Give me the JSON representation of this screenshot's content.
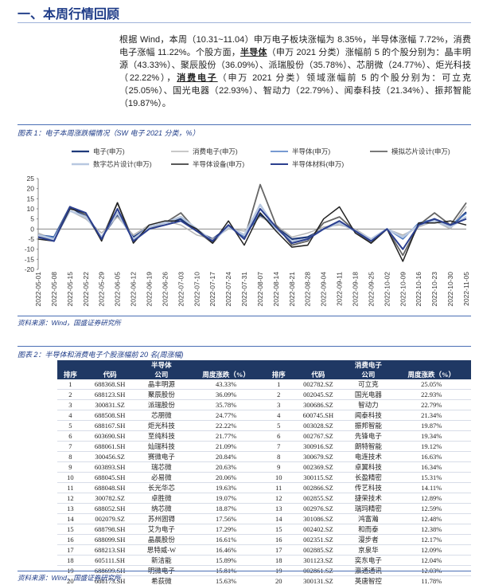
{
  "heading": "一、本周行情回顾",
  "paragraph": [
    "根据 Wind，本周（10.31~11.04）申万电子板块涨幅为 8.35%，半导体涨幅 7.72%，消费电子涨幅 11.22%。个股方面，",
    "半导体",
    "（申万 2021 分类）涨幅前 5 的个股分别为：晶丰明源（43.33%）、聚辰股份（36.09%）、派瑞股份（35.78%）、芯朋微（24.77%）、炬光科技（22.22%），",
    "消费电子",
    "（申万 2021 分类）领域涨幅前 5 的个股分别为：可立克（25.05%）、国光电器（22.93%）、智动力（22.79%）、闻泰科技（21.34%）、振邦智能（19.87%）。"
  ],
  "figure1_caption": "图表 1：电子本周涨跌幅情况（SW 电子 2021 分类，%）",
  "chart_data": {
    "type": "line",
    "categories": [
      "2022-05-01",
      "2022-05-08",
      "2022-05-15",
      "2022-05-22",
      "2022-05-29",
      "2022-06-05",
      "2022-06-12",
      "2022-06-19",
      "2022-06-26",
      "2022-07-03",
      "2022-07-10",
      "2022-07-17",
      "2022-07-24",
      "2022-07-31",
      "2022-08-07",
      "2022-08-14",
      "2022-08-21",
      "2022-08-28",
      "2022-09-04",
      "2022-09-11",
      "2022-09-18",
      "2022-09-25",
      "2022-10-02",
      "2022-10-09",
      "2022-10-16",
      "2022-10-23",
      "2022-10-30",
      "2022-11-05"
    ],
    "series": [
      {
        "name": "电子(申万)",
        "color": "#1f3a7a",
        "width": 2.2,
        "values": [
          -3,
          -4,
          11,
          6,
          -4,
          7,
          -4,
          1,
          3,
          5,
          -1,
          -5,
          1,
          -3,
          7,
          1,
          -5,
          -4,
          0,
          3,
          -1,
          -5,
          0,
          -4,
          2,
          5,
          1,
          8.35
        ]
      },
      {
        "name": "消费电子(申万)",
        "color": "#b5b5b5",
        "width": 1.5,
        "values": [
          -2,
          -5,
          9,
          5,
          -2,
          6,
          -3,
          2,
          4,
          2,
          -3,
          -5,
          0,
          -1,
          6,
          2,
          -4,
          -2,
          1,
          2,
          0,
          -5,
          0,
          -3,
          1,
          4,
          0,
          11.22
        ]
      },
      {
        "name": "半导体(申万)",
        "color": "#4a78c2",
        "width": 1.5,
        "values": [
          -3,
          -4,
          11,
          7,
          -4,
          8,
          -5,
          1,
          3,
          6,
          0,
          -6,
          2,
          -4,
          8,
          0,
          -6,
          -5,
          0,
          4,
          -1,
          -5,
          0,
          -5,
          3,
          5,
          2,
          7.72
        ]
      },
      {
        "name": "模拟芯片设计(申万)",
        "color": "#666666",
        "width": 1.8,
        "values": [
          -4,
          -5,
          11,
          7,
          -5,
          13,
          -6,
          0,
          3,
          8,
          -1,
          -7,
          2,
          -5,
          22,
          2,
          -8,
          -6,
          3,
          6,
          -1,
          -7,
          0,
          -13,
          2,
          8,
          2,
          13
        ]
      },
      {
        "name": "数字芯片设计(申万)",
        "color": "#b8c8e0",
        "width": 2.5,
        "values": [
          -3,
          -5,
          9,
          6,
          -4,
          8,
          -5,
          1,
          3,
          6,
          0,
          -6,
          1,
          -3,
          12,
          0,
          -6,
          -5,
          0,
          3,
          -1,
          -5,
          0,
          -4,
          2,
          4,
          1,
          6
        ]
      },
      {
        "name": "半导体设备(申万)",
        "color": "#222222",
        "width": 1.5,
        "values": [
          -5,
          -6,
          10,
          8,
          -6,
          13,
          -7,
          2,
          4,
          4,
          0,
          -7,
          4,
          -8,
          8,
          -1,
          -9,
          -8,
          5,
          11,
          -2,
          -7,
          0,
          -16,
          3,
          3,
          4,
          2
        ]
      },
      {
        "name": "半导体材料(申万)",
        "color": "#2b3f8f",
        "width": 2,
        "values": [
          -4,
          -6,
          11,
          8,
          -5,
          10,
          -6,
          0,
          2,
          4,
          -1,
          -6,
          2,
          -5,
          10,
          1,
          -7,
          -5,
          0,
          4,
          -1,
          -6,
          0,
          -10,
          2,
          5,
          2,
          5
        ]
      }
    ],
    "ylim": [
      -20,
      25
    ],
    "yticks": [
      -20,
      -15,
      -10,
      -5,
      0,
      5,
      10,
      15,
      20,
      25
    ]
  },
  "source1": "资料来源：Wind，国盛证券研究所",
  "figure2_caption": "图表 2：半导体和消费电子个股涨幅前 20 名(周涨幅)",
  "table": {
    "group_headers": [
      "半导体",
      "消费电子"
    ],
    "columns": [
      "排序",
      "代码",
      "公司",
      "周度涨跌（%）",
      "排序",
      "代码",
      "公司",
      "周度涨跌（%）"
    ],
    "rows": [
      [
        1,
        "688368.SH",
        "晶丰明源",
        "43.33%",
        1,
        "002782.SZ",
        "可立克",
        "25.05%"
      ],
      [
        2,
        "688123.SH",
        "聚辰股份",
        "36.09%",
        2,
        "002045.SZ",
        "国光电器",
        "22.93%"
      ],
      [
        3,
        "300831.SZ",
        "派瑞股份",
        "35.78%",
        3,
        "300686.SZ",
        "智动力",
        "22.79%"
      ],
      [
        4,
        "688508.SH",
        "芯朋微",
        "24.77%",
        4,
        "600745.SH",
        "闻泰科技",
        "21.34%"
      ],
      [
        5,
        "688167.SH",
        "炬光科技",
        "22.22%",
        5,
        "003028.SZ",
        "振邦智能",
        "19.87%"
      ],
      [
        6,
        "603690.SH",
        "至纯科技",
        "21.77%",
        6,
        "002767.SZ",
        "先锋电子",
        "19.34%"
      ],
      [
        7,
        "688061.SH",
        "灿瑞科技",
        "21.09%",
        7,
        "300916.SZ",
        "朗特智能",
        "19.12%"
      ],
      [
        8,
        "300456.SZ",
        "赛微电子",
        "20.84%",
        8,
        "300679.SZ",
        "电连技术",
        "16.63%"
      ],
      [
        9,
        "603893.SH",
        "瑞芯微",
        "20.63%",
        9,
        "002369.SZ",
        "卓翼科技",
        "16.34%"
      ],
      [
        10,
        "688045.SH",
        "必易微",
        "20.06%",
        10,
        "300115.SZ",
        "长盈精密",
        "15.31%"
      ],
      [
        11,
        "688048.SH",
        "长光华芯",
        "19.63%",
        11,
        "002866.SZ",
        "传艺科技",
        "14.11%"
      ],
      [
        12,
        "300782.SZ",
        "卓胜微",
        "19.07%",
        12,
        "002855.SZ",
        "捷荣技术",
        "12.89%"
      ],
      [
        13,
        "688052.SH",
        "纳芯微",
        "18.87%",
        13,
        "002976.SZ",
        "瑞玛精密",
        "12.59%"
      ],
      [
        14,
        "002079.SZ",
        "苏州固锝",
        "17.56%",
        14,
        "301086.SZ",
        "鸿富瀚",
        "12.48%"
      ],
      [
        15,
        "688798.SH",
        "艾为电子",
        "17.29%",
        15,
        "002402.SZ",
        "和而泰",
        "12.38%"
      ],
      [
        16,
        "688099.SH",
        "晶晨股份",
        "16.61%",
        16,
        "002351.SZ",
        "漫步者",
        "12.17%"
      ],
      [
        17,
        "688213.SH",
        "思特威-W",
        "16.46%",
        17,
        "002885.SZ",
        "京泉华",
        "12.09%"
      ],
      [
        18,
        "605111.SH",
        "新洁能",
        "15.89%",
        18,
        "301123.SZ",
        "奕东电子",
        "12.04%"
      ],
      [
        19,
        "688699.SH",
        "明微电子",
        "15.81%",
        19,
        "002861.SZ",
        "瀛通通讯",
        "12.03%"
      ],
      [
        20,
        "688173.SH",
        "希荻微",
        "15.63%",
        20,
        "300131.SZ",
        "英唐智控",
        "11.78%"
      ]
    ]
  },
  "source2": "资料来源：Wind，国盛证券研究所"
}
